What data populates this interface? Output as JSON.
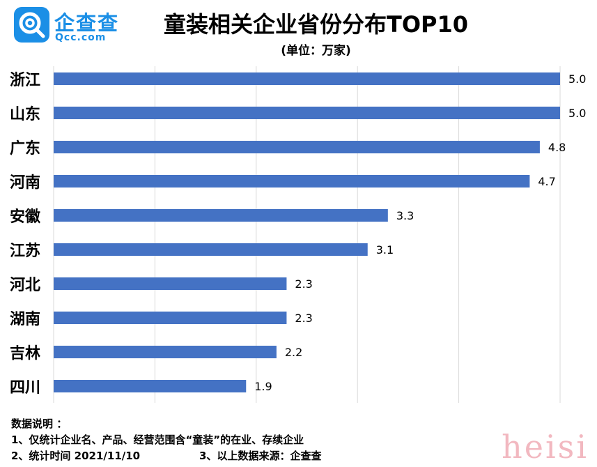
{
  "logo": {
    "brand_cn": "企查查",
    "brand_en": "Qcc.com"
  },
  "header": {
    "title": "童装相关企业省份分布TOP10",
    "unit": "(单位：万家)"
  },
  "chart_data": {
    "type": "bar",
    "orientation": "horizontal",
    "title": "童装相关企业省份分布TOP10",
    "subtitle": "(单位：万家)",
    "categories": [
      "浙江",
      "山东",
      "广东",
      "河南",
      "安徽",
      "江苏",
      "河北",
      "湖南",
      "吉林",
      "四川"
    ],
    "values": [
      5.0,
      5.0,
      4.8,
      4.7,
      3.3,
      3.1,
      2.3,
      2.3,
      2.2,
      1.9
    ],
    "value_labels": [
      "5.0",
      "5.0",
      "4.8",
      "4.7",
      "3.3",
      "3.1",
      "2.3",
      "2.3",
      "2.2",
      "1.9"
    ],
    "xlim": [
      0,
      5.0
    ],
    "grid": true,
    "bar_color": "#4472c4"
  },
  "notes": {
    "heading": "数据说明 ：",
    "line1": "1、仅统计企业名、产品、经营范围含“童装”的在业、存续企业",
    "line2_a": "2、统计时间 2021/11/10",
    "line2_b": "3、以上数据来源：企查查"
  },
  "watermark": "heisi"
}
